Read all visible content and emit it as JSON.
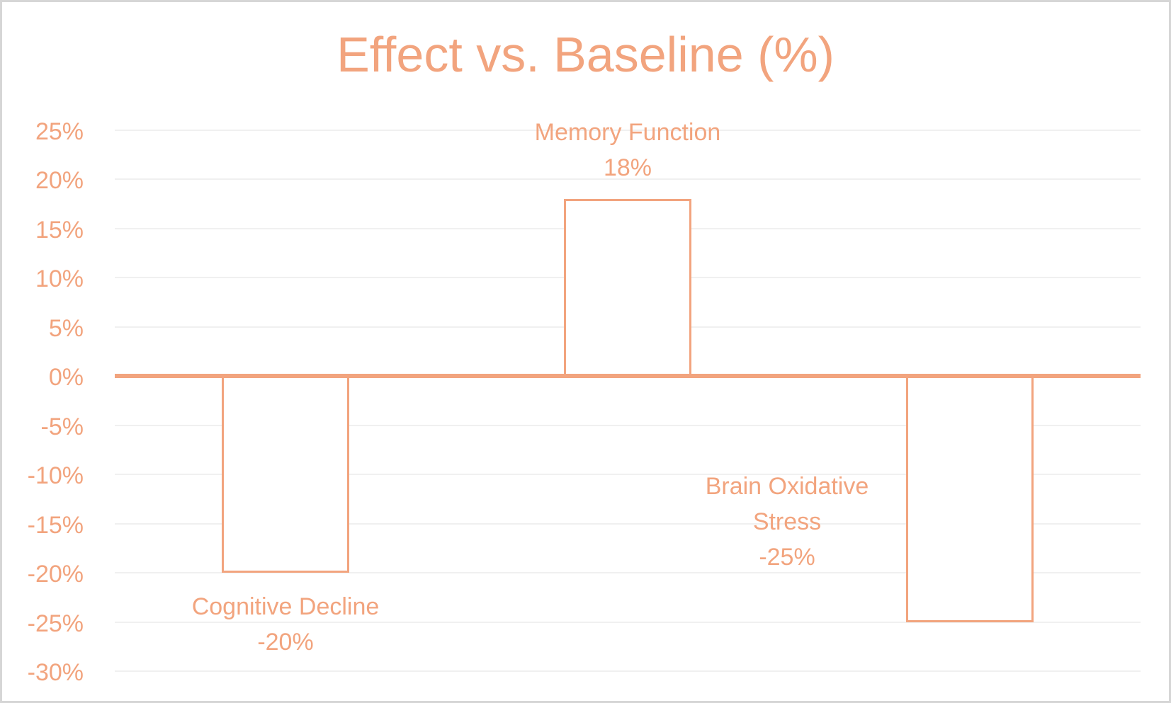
{
  "window": {
    "background": "#FFFFFF",
    "border_color": "#D6D6D6"
  },
  "chart_data": {
    "type": "bar",
    "title": "Effect vs. Baseline (%)",
    "categories": [
      "Cognitive Decline",
      "Memory Function",
      "Brain Oxidative Stress"
    ],
    "values": [
      -20,
      18,
      -25
    ],
    "value_labels": [
      "-20%",
      "18%",
      "-25%"
    ],
    "xlabel": "",
    "ylabel": "",
    "y_axis": {
      "min": -30,
      "max": 25,
      "step": 5,
      "ticks": [
        "25%",
        "20%",
        "15%",
        "10%",
        "5%",
        "0%",
        "-5%",
        "-10%",
        "-15%",
        "-20%",
        "-25%",
        "-30%"
      ]
    },
    "grid": true,
    "legend": "none",
    "bar_style": "outlined",
    "colors": {
      "accent": "#F2A47E",
      "bar_fill": "#FFFFFF",
      "gridline": "#F0F0F0",
      "background": "#FFFFFF"
    }
  }
}
